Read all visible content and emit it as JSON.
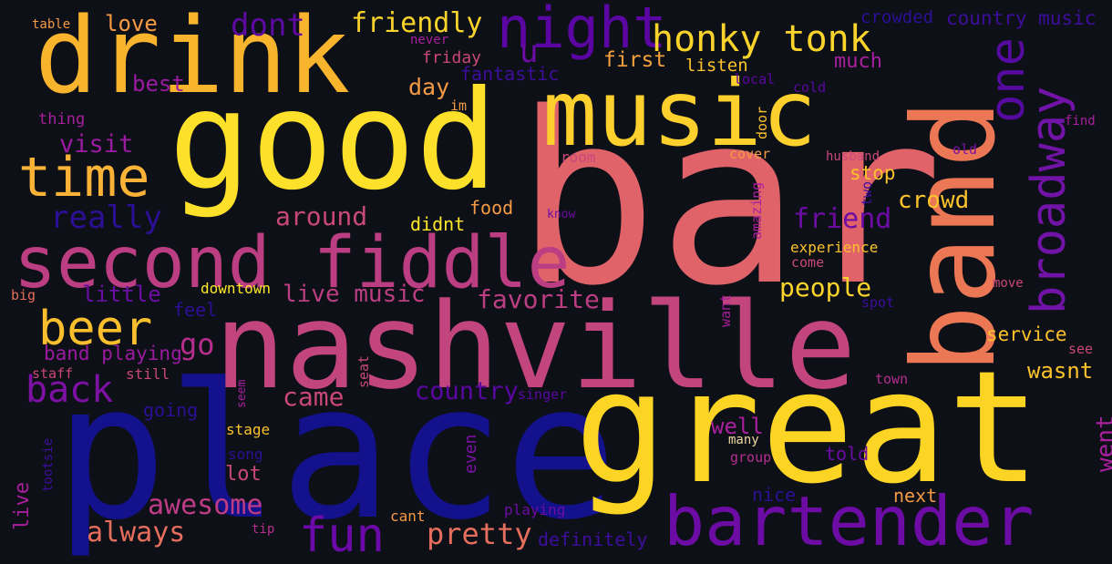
{
  "word_cloud": {
    "background": "#0d1017",
    "colormap": [
      "#0d0887",
      "#6a00a8",
      "#b12a90",
      "#e16462",
      "#fca636",
      "#f0f921"
    ],
    "words": [
      {
        "text": "bar",
        "color": "#e0636a"
      },
      {
        "text": "place",
        "color": "#13118c"
      },
      {
        "text": "great",
        "color": "#fbd424"
      },
      {
        "text": "good",
        "color": "#fde02a"
      },
      {
        "text": "nashville",
        "color": "#c3457e"
      },
      {
        "text": "band",
        "color": "#ec7755"
      },
      {
        "text": "drink",
        "color": "#f9b42e"
      },
      {
        "text": "music",
        "color": "#fdd02d"
      },
      {
        "text": "second fiddle",
        "color": "#bb3d82"
      },
      {
        "text": "bartender",
        "color": "#6d0ca4"
      },
      {
        "text": "night",
        "color": "#5b06a2"
      },
      {
        "text": "time",
        "color": "#fbb337"
      },
      {
        "text": "honky tonk",
        "color": "#fbd42b"
      },
      {
        "text": "beer",
        "color": "#fbbf2d"
      },
      {
        "text": "broadway",
        "color": "#7113a6"
      },
      {
        "text": "one",
        "color": "#560aa0"
      },
      {
        "text": "fun",
        "color": "#6b0aa8"
      },
      {
        "text": "really",
        "color": "#2d0f96"
      },
      {
        "text": "back",
        "color": "#7d11a4"
      },
      {
        "text": "awesome",
        "color": "#bd3c85"
      },
      {
        "text": "pretty",
        "color": "#e66e5c"
      },
      {
        "text": "always",
        "color": "#e66e5c"
      },
      {
        "text": "friendly",
        "color": "#fbd42b"
      },
      {
        "text": "dont",
        "color": "#5c0aa0"
      },
      {
        "text": "love",
        "color": "#f59a44"
      },
      {
        "text": "people",
        "color": "#fbd42b"
      },
      {
        "text": "friend",
        "color": "#6d0ca4"
      },
      {
        "text": "crowd",
        "color": "#fbc22c"
      },
      {
        "text": "favorite",
        "color": "#bb3d82"
      },
      {
        "text": "live music",
        "color": "#bb3d82"
      },
      {
        "text": "around",
        "color": "#c9477b"
      },
      {
        "text": "came",
        "color": "#c9477b"
      },
      {
        "text": "country",
        "color": "#5b07a3"
      },
      {
        "text": "go",
        "color": "#b52e8d"
      },
      {
        "text": "little",
        "color": "#6b0ea4"
      },
      {
        "text": "first",
        "color": "#f5a03d"
      },
      {
        "text": "day",
        "color": "#f59a44"
      },
      {
        "text": "visit",
        "color": "#9a1aa0"
      },
      {
        "text": "best",
        "color": "#9a1aa0"
      },
      {
        "text": "much",
        "color": "#a91f9d"
      },
      {
        "text": "listen",
        "color": "#fbc22c"
      },
      {
        "text": "u",
        "color": "#6d0ca4"
      },
      {
        "text": "well",
        "color": "#a91f9d"
      },
      {
        "text": "wasnt",
        "color": "#fbc22c"
      },
      {
        "text": "went",
        "color": "#a91f9d"
      },
      {
        "text": "service",
        "color": "#fbc22c"
      },
      {
        "text": "band playing",
        "color": "#9a1aa0"
      },
      {
        "text": "lot",
        "color": "#c9477b"
      },
      {
        "text": "stop",
        "color": "#fbc22c"
      },
      {
        "text": "nice",
        "color": "#2d0f96"
      },
      {
        "text": "next",
        "color": "#f59a44"
      },
      {
        "text": "told",
        "color": "#6d0ca4"
      },
      {
        "text": "food",
        "color": "#f59a44"
      },
      {
        "text": "didnt",
        "color": "#fde72a"
      },
      {
        "text": "fantastic",
        "color": "#3d0d9c"
      },
      {
        "text": "crowded",
        "color": "#2d0f96"
      },
      {
        "text": "country music",
        "color": "#3d0d9c"
      },
      {
        "text": "friday",
        "color": "#c9477b"
      },
      {
        "text": "never",
        "color": "#a91f9d"
      },
      {
        "text": "table",
        "color": "#f59a44"
      },
      {
        "text": "thing",
        "color": "#a91f9d"
      },
      {
        "text": "im",
        "color": "#f59a44"
      },
      {
        "text": "local",
        "color": "#5b07a3"
      },
      {
        "text": "cold",
        "color": "#5b07a3"
      },
      {
        "text": "find",
        "color": "#a91f9d"
      },
      {
        "text": "old",
        "color": "#7d11a4"
      },
      {
        "text": "room",
        "color": "#c9477b"
      },
      {
        "text": "cover",
        "color": "#f59a44"
      },
      {
        "text": "husband",
        "color": "#c9477b"
      },
      {
        "text": "door",
        "color": "#fbc22c"
      },
      {
        "text": "know",
        "color": "#6d0ca4"
      },
      {
        "text": "amazing",
        "color": "#a91f9d"
      },
      {
        "text": "two",
        "color": "#3d0d9c"
      },
      {
        "text": "experience",
        "color": "#fbc22c"
      },
      {
        "text": "come",
        "color": "#c9477b"
      },
      {
        "text": "move",
        "color": "#c9477b"
      },
      {
        "text": "spot",
        "color": "#3d0d9c"
      },
      {
        "text": "want",
        "color": "#a91f9d"
      },
      {
        "text": "big",
        "color": "#e66e5c"
      },
      {
        "text": "downtown",
        "color": "#fde72a"
      },
      {
        "text": "feel",
        "color": "#2d0f96"
      },
      {
        "text": "staff",
        "color": "#c9477b"
      },
      {
        "text": "still",
        "color": "#c9477b"
      },
      {
        "text": "seat",
        "color": "#c9477b"
      },
      {
        "text": "seem",
        "color": "#a91f9d"
      },
      {
        "text": "singer",
        "color": "#5b07a3"
      },
      {
        "text": "going",
        "color": "#2d0f96"
      },
      {
        "text": "stage",
        "color": "#fbc22c"
      },
      {
        "text": "song",
        "color": "#2d0f96"
      },
      {
        "text": "many",
        "color": "#f0d9a0"
      },
      {
        "text": "group",
        "color": "#b52e8d"
      },
      {
        "text": "even",
        "color": "#7d11a4"
      },
      {
        "text": "town",
        "color": "#b52e8d"
      },
      {
        "text": "see",
        "color": "#c9477b"
      },
      {
        "text": "tootsie",
        "color": "#3d0d9c"
      },
      {
        "text": "live",
        "color": "#a91f9d"
      },
      {
        "text": "tip",
        "color": "#b52e8d"
      },
      {
        "text": "cant",
        "color": "#f59a44"
      },
      {
        "text": "playing",
        "color": "#6d0ca4"
      },
      {
        "text": "definitely",
        "color": "#3d0d9c"
      }
    ]
  }
}
